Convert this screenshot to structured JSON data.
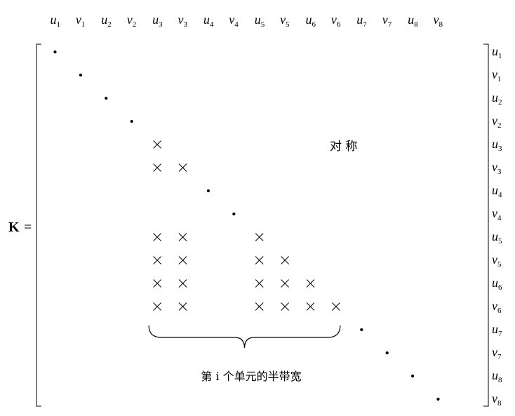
{
  "matrix_symbol": "K",
  "equals": "=",
  "symmetry_label": "对 称",
  "bandwidth_label": "第 i 个单元的半带宽",
  "dof": [
    {
      "base": "u",
      "sub": "1"
    },
    {
      "base": "v",
      "sub": "1"
    },
    {
      "base": "u",
      "sub": "2"
    },
    {
      "base": "v",
      "sub": "2"
    },
    {
      "base": "u",
      "sub": "3"
    },
    {
      "base": "v",
      "sub": "3"
    },
    {
      "base": "u",
      "sub": "4"
    },
    {
      "base": "v",
      "sub": "4"
    },
    {
      "base": "u",
      "sub": "5"
    },
    {
      "base": "v",
      "sub": "5"
    },
    {
      "base": "u",
      "sub": "6"
    },
    {
      "base": "v",
      "sub": "6"
    },
    {
      "base": "u",
      "sub": "7"
    },
    {
      "base": "v",
      "sub": "7"
    },
    {
      "base": "u",
      "sub": "8"
    },
    {
      "base": "v",
      "sub": "8"
    }
  ],
  "diagonal_entries": [
    1,
    2,
    3,
    4,
    7,
    8,
    13,
    14,
    15,
    16
  ],
  "element_dofs": [
    5,
    6,
    9,
    10,
    11,
    12
  ],
  "bracket_span": {
    "from_col": 5,
    "to_col": 12
  }
}
